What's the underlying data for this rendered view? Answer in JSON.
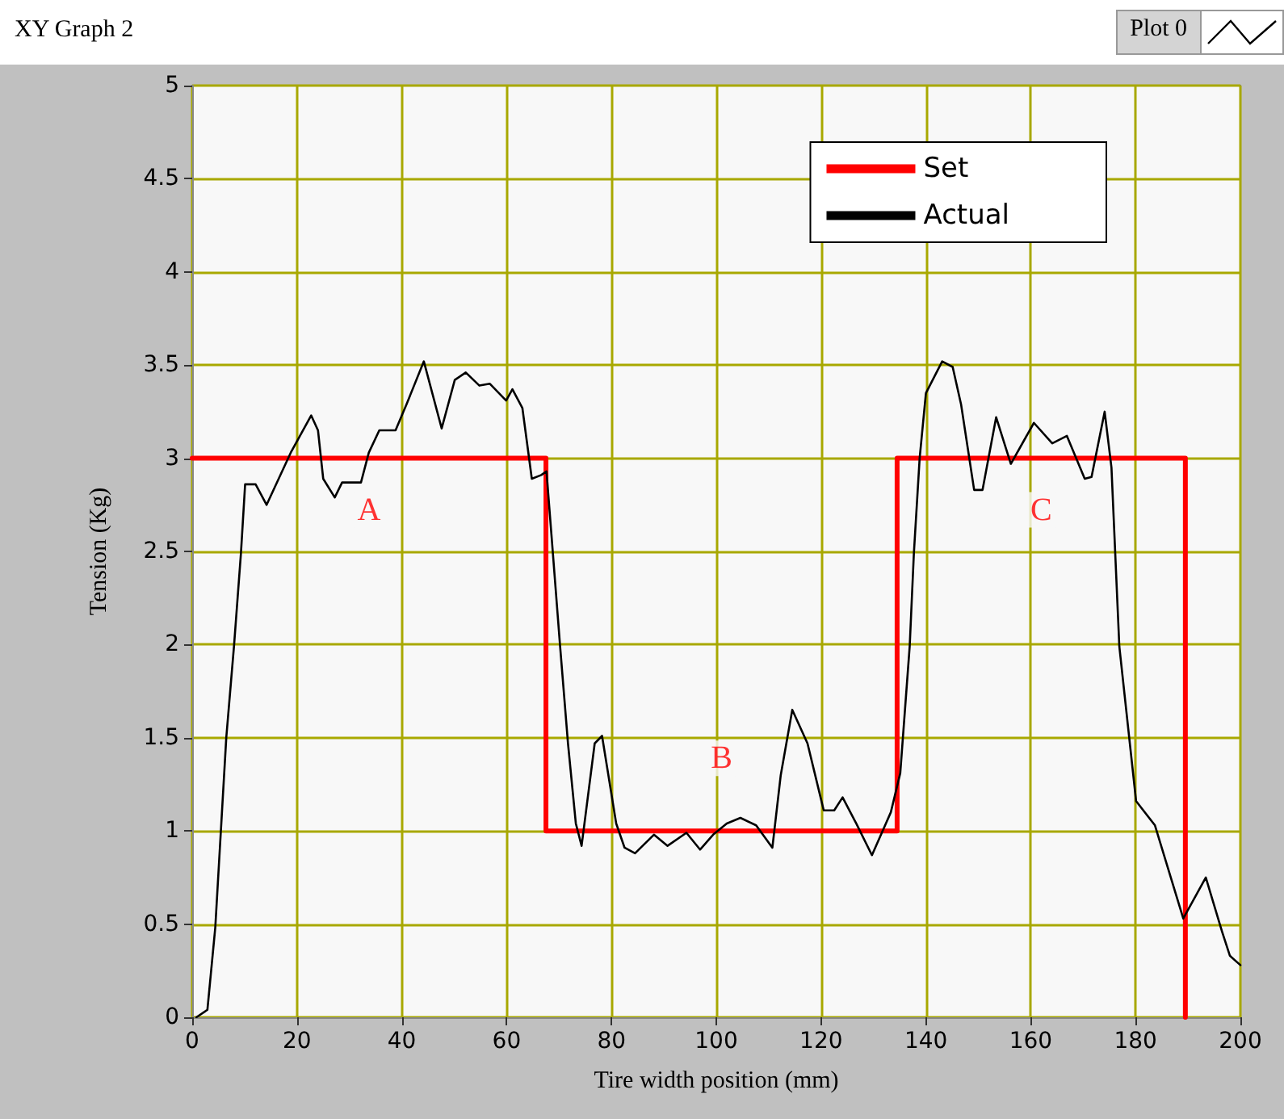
{
  "chart_data": {
    "type": "line",
    "title": "XY Graph 2",
    "xlabel": "Tire width position (mm)",
    "ylabel": "Tension (Kg)",
    "xlim": [
      0,
      200
    ],
    "xticks": [
      0,
      20,
      40,
      60,
      80,
      100,
      120,
      140,
      160,
      180,
      200
    ],
    "ylim": [
      0,
      5
    ],
    "yticks": [
      0,
      0.5,
      1,
      1.5,
      2,
      2.5,
      3,
      3.5,
      4,
      4.5,
      5
    ],
    "grid": true,
    "legend": "top right",
    "marker": "none",
    "line_style": "solid",
    "series": [
      {
        "name": "Set",
        "color": "#ff0000",
        "x": [
          0,
          67.5,
          67.5,
          134.5,
          134.5,
          189.5,
          189.5
        ],
        "values": [
          3,
          3,
          1,
          1,
          3,
          3,
          0
        ]
      },
      {
        "name": "Actual",
        "color": "#000000",
        "x": [
          0.8,
          2.9,
          4.4,
          6.5,
          8,
          9.3,
          10.1,
          12.1,
          14.2,
          18.8,
          22.7,
          24,
          25,
          27.2,
          28.6,
          32.2,
          33.7,
          35.7,
          38.8,
          40.9,
          44.2,
          47.6,
          50.1,
          52.2,
          54.8,
          56.8,
          59.9,
          61.1,
          63,
          64.8,
          66.6,
          67.6,
          68.6,
          70.2,
          71.7,
          73.2,
          74.3,
          76.8,
          78.2,
          80.9,
          82.5,
          84.5,
          88.1,
          90.7,
          94.3,
          96.9,
          99.4,
          102,
          104.6,
          107.6,
          110.7,
          112.3,
          114.5,
          117.4,
          120.5,
          122.5,
          124.1,
          126.7,
          129.7,
          133.3,
          135.1,
          136.9,
          137.7,
          138.8,
          140,
          143.1,
          145.1,
          146.7,
          149.2,
          150.8,
          153.4,
          156.2,
          160.6,
          164.1,
          166.9,
          170.3,
          171.6,
          174.1,
          175.4,
          176.9,
          180.1,
          183.7,
          189.1,
          193.4,
          196.5,
          198,
          200
        ],
        "values": [
          0,
          0.04,
          0.48,
          1.5,
          2,
          2.49,
          2.86,
          2.86,
          2.75,
          3.03,
          3.23,
          3.15,
          2.89,
          2.79,
          2.87,
          2.87,
          3.03,
          3.15,
          3.15,
          3.29,
          3.52,
          3.16,
          3.42,
          3.46,
          3.39,
          3.4,
          3.31,
          3.37,
          3.27,
          2.89,
          2.91,
          2.93,
          2.57,
          1.99,
          1.47,
          1.04,
          0.92,
          1.47,
          1.51,
          1.04,
          0.91,
          0.88,
          0.98,
          0.92,
          0.99,
          0.9,
          0.98,
          1.04,
          1.07,
          1.03,
          0.91,
          1.3,
          1.65,
          1.47,
          1.11,
          1.11,
          1.18,
          1.04,
          0.87,
          1.1,
          1.31,
          1.99,
          2.49,
          3,
          3.35,
          3.52,
          3.49,
          3.29,
          2.83,
          2.83,
          3.22,
          2.97,
          3.19,
          3.08,
          3.12,
          2.89,
          2.9,
          3.25,
          2.95,
          1.99,
          1.16,
          1.03,
          0.53,
          0.75,
          0.46,
          0.33,
          0.28
        ]
      }
    ],
    "annotations": [
      "A",
      "B",
      "C",
      "Plot 0"
    ]
  }
}
